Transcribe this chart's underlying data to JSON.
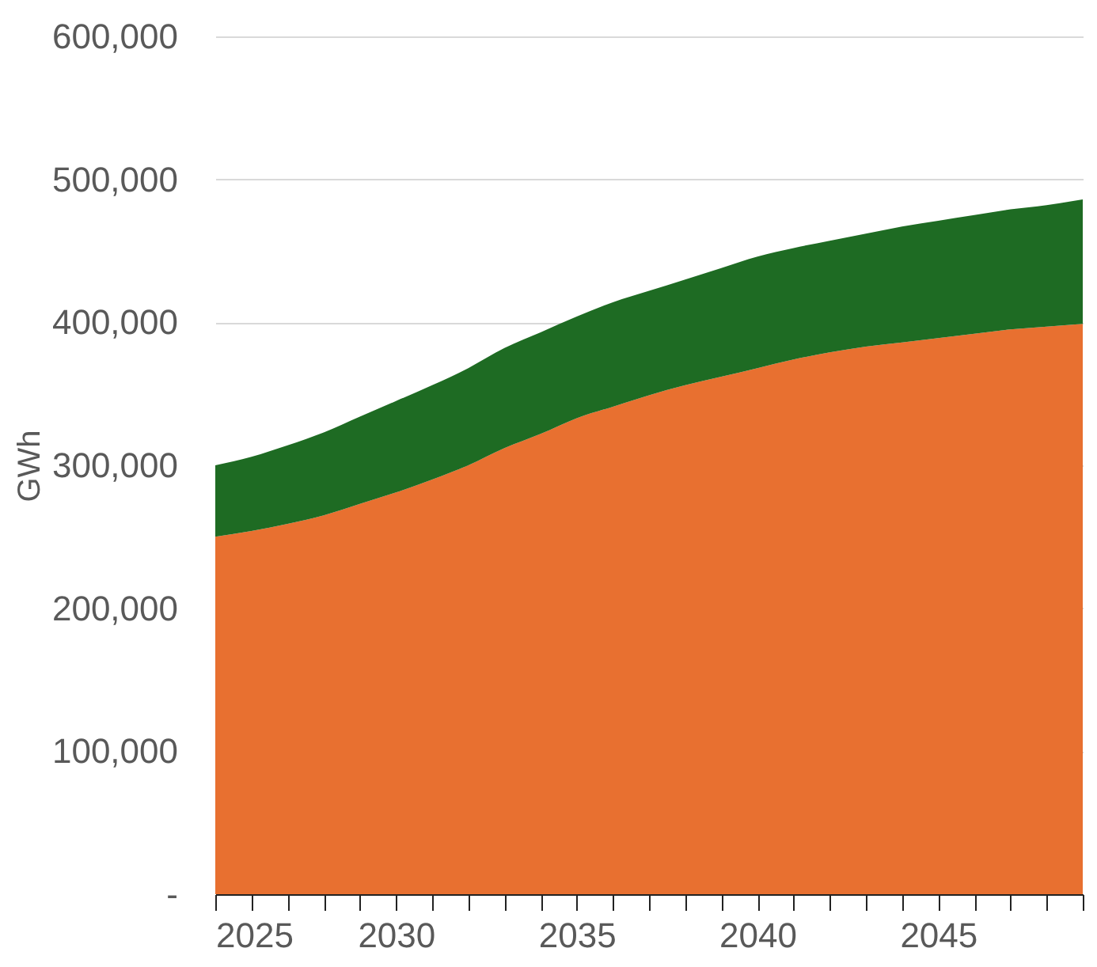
{
  "chart_data": {
    "type": "area",
    "stacked": true,
    "ylabel": "GWh",
    "x": [
      2025,
      2026,
      2027,
      2028,
      2029,
      2030,
      2031,
      2032,
      2033,
      2034,
      2035,
      2036,
      2037,
      2038,
      2039,
      2040,
      2041,
      2042,
      2043,
      2044,
      2045,
      2046,
      2047,
      2048,
      2049
    ],
    "series": [
      {
        "color": "#e87030",
        "values": [
          250000,
          254000,
          259000,
          265000,
          273000,
          281000,
          290000,
          300000,
          312000,
          322000,
          333000,
          341000,
          349000,
          356000,
          362000,
          368000,
          374000,
          379000,
          383000,
          386000,
          389000,
          392000,
          395000,
          397000,
          399000
        ]
      },
      {
        "color": "#1e6b23",
        "values": [
          50000,
          52000,
          55000,
          58000,
          61000,
          64000,
          66000,
          68000,
          70000,
          71000,
          71000,
          73000,
          73000,
          74000,
          76000,
          78000,
          78000,
          78000,
          79000,
          81000,
          82000,
          83000,
          84000,
          85000,
          87000
        ]
      }
    ],
    "xlim": [
      2025,
      2049
    ],
    "xticks": [
      2025,
      {
        "value": 2026,
        "label": null
      },
      {
        "value": 2027,
        "label": null
      },
      {
        "value": 2028,
        "label": null
      },
      {
        "value": 2029,
        "label": null
      },
      2030,
      {
        "value": 2031,
        "label": null
      },
      {
        "value": 2032,
        "label": null
      },
      {
        "value": 2033,
        "label": null
      },
      {
        "value": 2034,
        "label": null
      },
      2035,
      {
        "value": 2036,
        "label": null
      },
      {
        "value": 2037,
        "label": null
      },
      {
        "value": 2038,
        "label": null
      },
      {
        "value": 2039,
        "label": null
      },
      2040,
      {
        "value": 2041,
        "label": null
      },
      {
        "value": 2042,
        "label": null
      },
      {
        "value": 2043,
        "label": null
      },
      {
        "value": 2044,
        "label": null
      },
      2045,
      {
        "value": 2046,
        "label": null
      },
      {
        "value": 2047,
        "label": null
      },
      {
        "value": 2048,
        "label": null
      },
      {
        "value": 2049,
        "label": null
      }
    ],
    "ylim": [
      0,
      600000
    ],
    "yticks": [
      {
        "value": 0,
        "label": "-"
      },
      {
        "value": 100000,
        "label": "100,000"
      },
      {
        "value": 200000,
        "label": "200,000"
      },
      {
        "value": 300000,
        "label": "300,000"
      },
      {
        "value": 400000,
        "label": "400,000"
      },
      {
        "value": 500000,
        "label": "500,000"
      },
      {
        "value": 600000,
        "label": "600,000"
      }
    ],
    "grid": "y",
    "legend": false
  }
}
